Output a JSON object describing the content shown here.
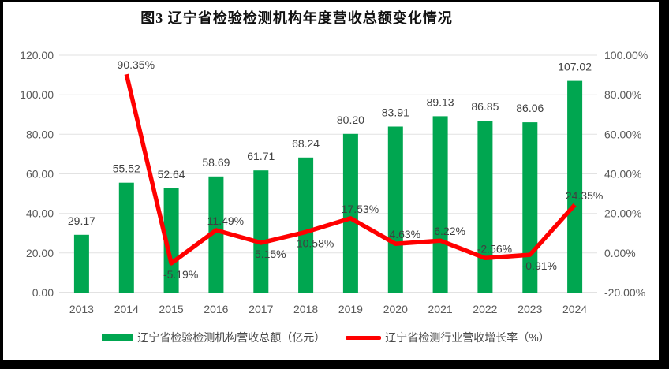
{
  "figure": {
    "title": "图3 辽宁省检验检测机构年度营收总额变化情况"
  },
  "chart_data": {
    "type": "combo-bar-line",
    "title": "图3 辽宁省检验检测机构年度营收总额变化情况",
    "categories": [
      "2013",
      "2014",
      "2015",
      "2016",
      "2017",
      "2018",
      "2019",
      "2020",
      "2021",
      "2022",
      "2023",
      "2024"
    ],
    "series": [
      {
        "name": "辽宁省检验检测机构营收总额（亿元）",
        "type": "bar",
        "axis": "left",
        "color": "#00A650",
        "values": [
          29.17,
          55.52,
          52.64,
          58.69,
          61.71,
          68.24,
          80.2,
          83.91,
          89.13,
          86.85,
          86.06,
          107.02
        ],
        "labels": [
          "29.17",
          "55.52",
          "52.64",
          "58.69",
          "61.71",
          "68.24",
          "80.20",
          "83.91",
          "89.13",
          "86.85",
          "86.06",
          "107.02"
        ]
      },
      {
        "name": "辽宁省检测行业营收增长率（%）",
        "type": "line",
        "axis": "right",
        "color": "#FF0000",
        "values": [
          null,
          90.35,
          -5.19,
          11.49,
          5.15,
          10.58,
          17.53,
          4.63,
          6.22,
          -2.56,
          -0.91,
          24.35
        ],
        "labels": [
          null,
          "90.35%",
          "-5.19%",
          "11.49%",
          "5.15%",
          "10.58%",
          "17.53%",
          "4.63%",
          "6.22%",
          "-2.56%",
          "-0.91%",
          "24.35%"
        ],
        "label_placement": [
          null,
          "above",
          "below",
          "above",
          "below",
          "below",
          "above",
          "above",
          "above",
          "above",
          "below",
          "above"
        ]
      }
    ],
    "left_axis": {
      "min": 0,
      "max": 120,
      "step": 20,
      "ticks": [
        "0.00",
        "20.00",
        "40.00",
        "60.00",
        "80.00",
        "100.00",
        "120.00"
      ]
    },
    "right_axis": {
      "min": -20,
      "max": 100,
      "step": 20,
      "ticks": [
        "-20.00%",
        "0.00%",
        "20.00%",
        "40.00%",
        "60.00%",
        "80.00%",
        "100.00%"
      ]
    },
    "grid": true,
    "legend_position": "bottom",
    "legend": [
      {
        "label": "辽宁省检验检测机构营收总额（亿元）",
        "swatch": "bar",
        "color": "#00A650"
      },
      {
        "label": "辽宁省检测行业营收增长率（%）",
        "swatch": "line",
        "color": "#FF0000"
      }
    ]
  }
}
